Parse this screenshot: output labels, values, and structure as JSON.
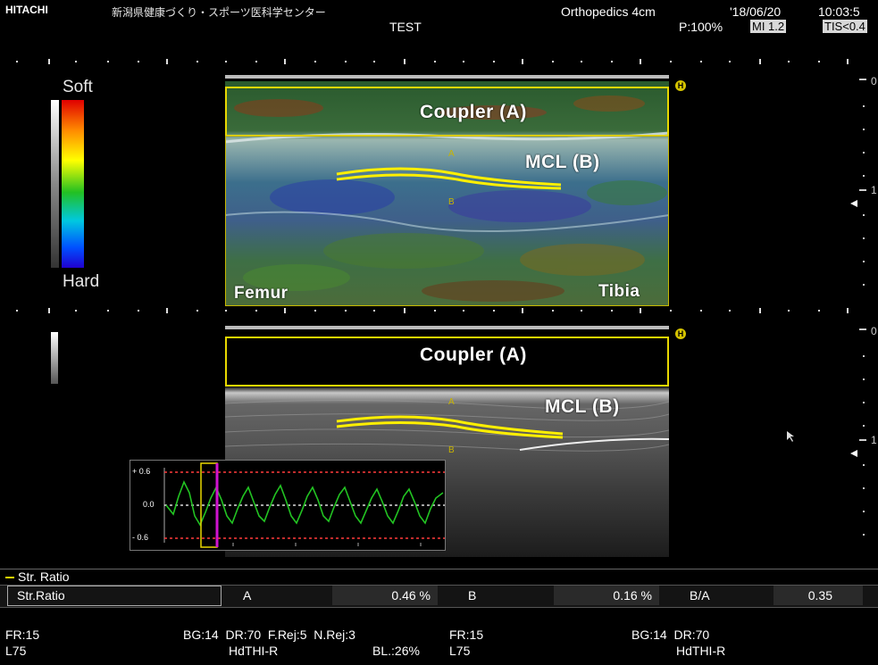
{
  "header": {
    "brand": "HITACHI",
    "facility": "新潟県健康づくり・スポーツ医科学センター",
    "patient": "TEST",
    "preset": "Orthopedics 4cm",
    "date": "'18/06/20",
    "time": "10:03:5",
    "power": "P:100%",
    "mi": "MI 1.2",
    "tis": "TIS<0.4"
  },
  "upper_panel": {
    "scale_top": "Soft",
    "scale_bottom": "Hard",
    "roi_label": "Coupler (A)",
    "tissue_label": "MCL (B)",
    "left_label": "Femur",
    "right_label": "Tibia",
    "marker_a": "A",
    "marker_b": "B",
    "h_marker": "H",
    "depth_top": "0",
    "depth_mid": "1"
  },
  "lower_panel": {
    "roi_label": "Coupler (A)",
    "tissue_label": "MCL (B)",
    "marker_a": "A",
    "marker_b": "B",
    "h_marker": "H",
    "depth_top": "0",
    "depth_mid": "1"
  },
  "strain_graph": {
    "y_labels": [
      "+ 0.6",
      "0.0",
      "- 0.6"
    ]
  },
  "results": {
    "section_title": "Str. Ratio",
    "row_label": "Str.Ratio",
    "a_label": "A",
    "a_value": "0.46 %",
    "b_label": "B",
    "b_value": "0.16 %",
    "ratio_label": "B/A",
    "ratio_value": "0.35"
  },
  "footer": {
    "left_fr": "FR:15",
    "left_probe": "L75",
    "left_params": "BG:14  DR:70  F.Rej:5  N.Rej:3",
    "left_mode": "HdTHI-R",
    "left_bl": "BL.:26%",
    "right_fr": "FR:15",
    "right_probe": "L75",
    "right_params": "BG:14  DR:70",
    "right_mode": "HdTHI-R"
  },
  "colors": {
    "roi": "#e8d800",
    "graph_line": "#22c322",
    "graph_limit": "#ff3b3b",
    "graph_cursor_yellow": "#e8d800",
    "graph_cursor_magenta": "#d014d0"
  }
}
